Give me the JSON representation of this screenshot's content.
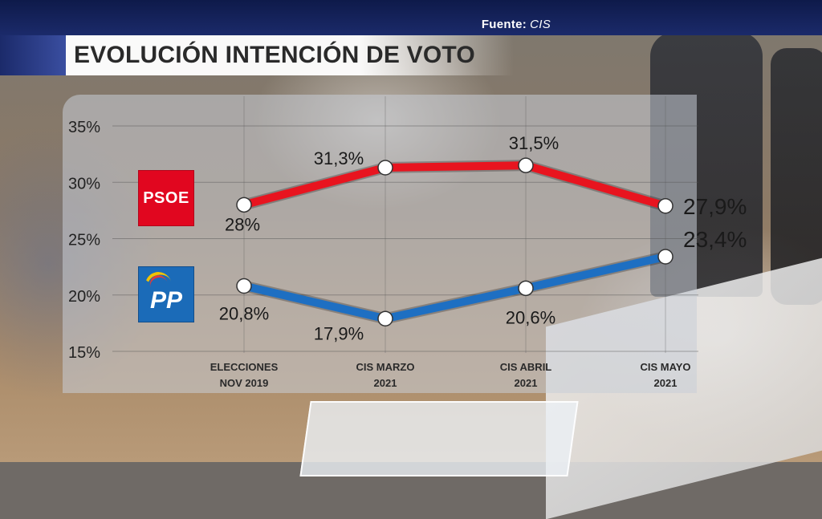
{
  "header": {
    "source_label": "Fuente:",
    "source_value": "CIS",
    "title": "EVOLUCIÓN INTENCIÓN DE VOTO"
  },
  "colors": {
    "psoe": "#e8141f",
    "pp": "#1e6fc2",
    "banner": "#1b2a6a"
  },
  "logos": {
    "psoe": "PSOE",
    "pp": "PP"
  },
  "chart_data": {
    "type": "line",
    "title": "EVOLUCIÓN INTENCIÓN DE VOTO",
    "categories": [
      [
        "ELECCIONES",
        "NOV 2019"
      ],
      [
        "CIS MARZO",
        "2021"
      ],
      [
        "CIS ABRIL",
        "2021"
      ],
      [
        "CIS MAYO",
        "2021"
      ]
    ],
    "ylim": [
      15,
      35
    ],
    "yticks": [
      "15%",
      "20%",
      "25%",
      "30%",
      "35%"
    ],
    "ytick_values": [
      15,
      20,
      25,
      30,
      35
    ],
    "grid": true,
    "series": [
      {
        "name": "PSOE",
        "color": "#e8141f",
        "values": [
          28,
          31.3,
          31.5,
          27.9
        ],
        "labels": [
          "28%",
          "31,3%",
          "31,5%",
          "27,9%"
        ]
      },
      {
        "name": "PP",
        "color": "#1e6fc2",
        "values": [
          20.8,
          17.9,
          20.6,
          23.4
        ],
        "labels": [
          "20,8%",
          "17,9%",
          "20,6%",
          "23,4%"
        ]
      }
    ]
  }
}
